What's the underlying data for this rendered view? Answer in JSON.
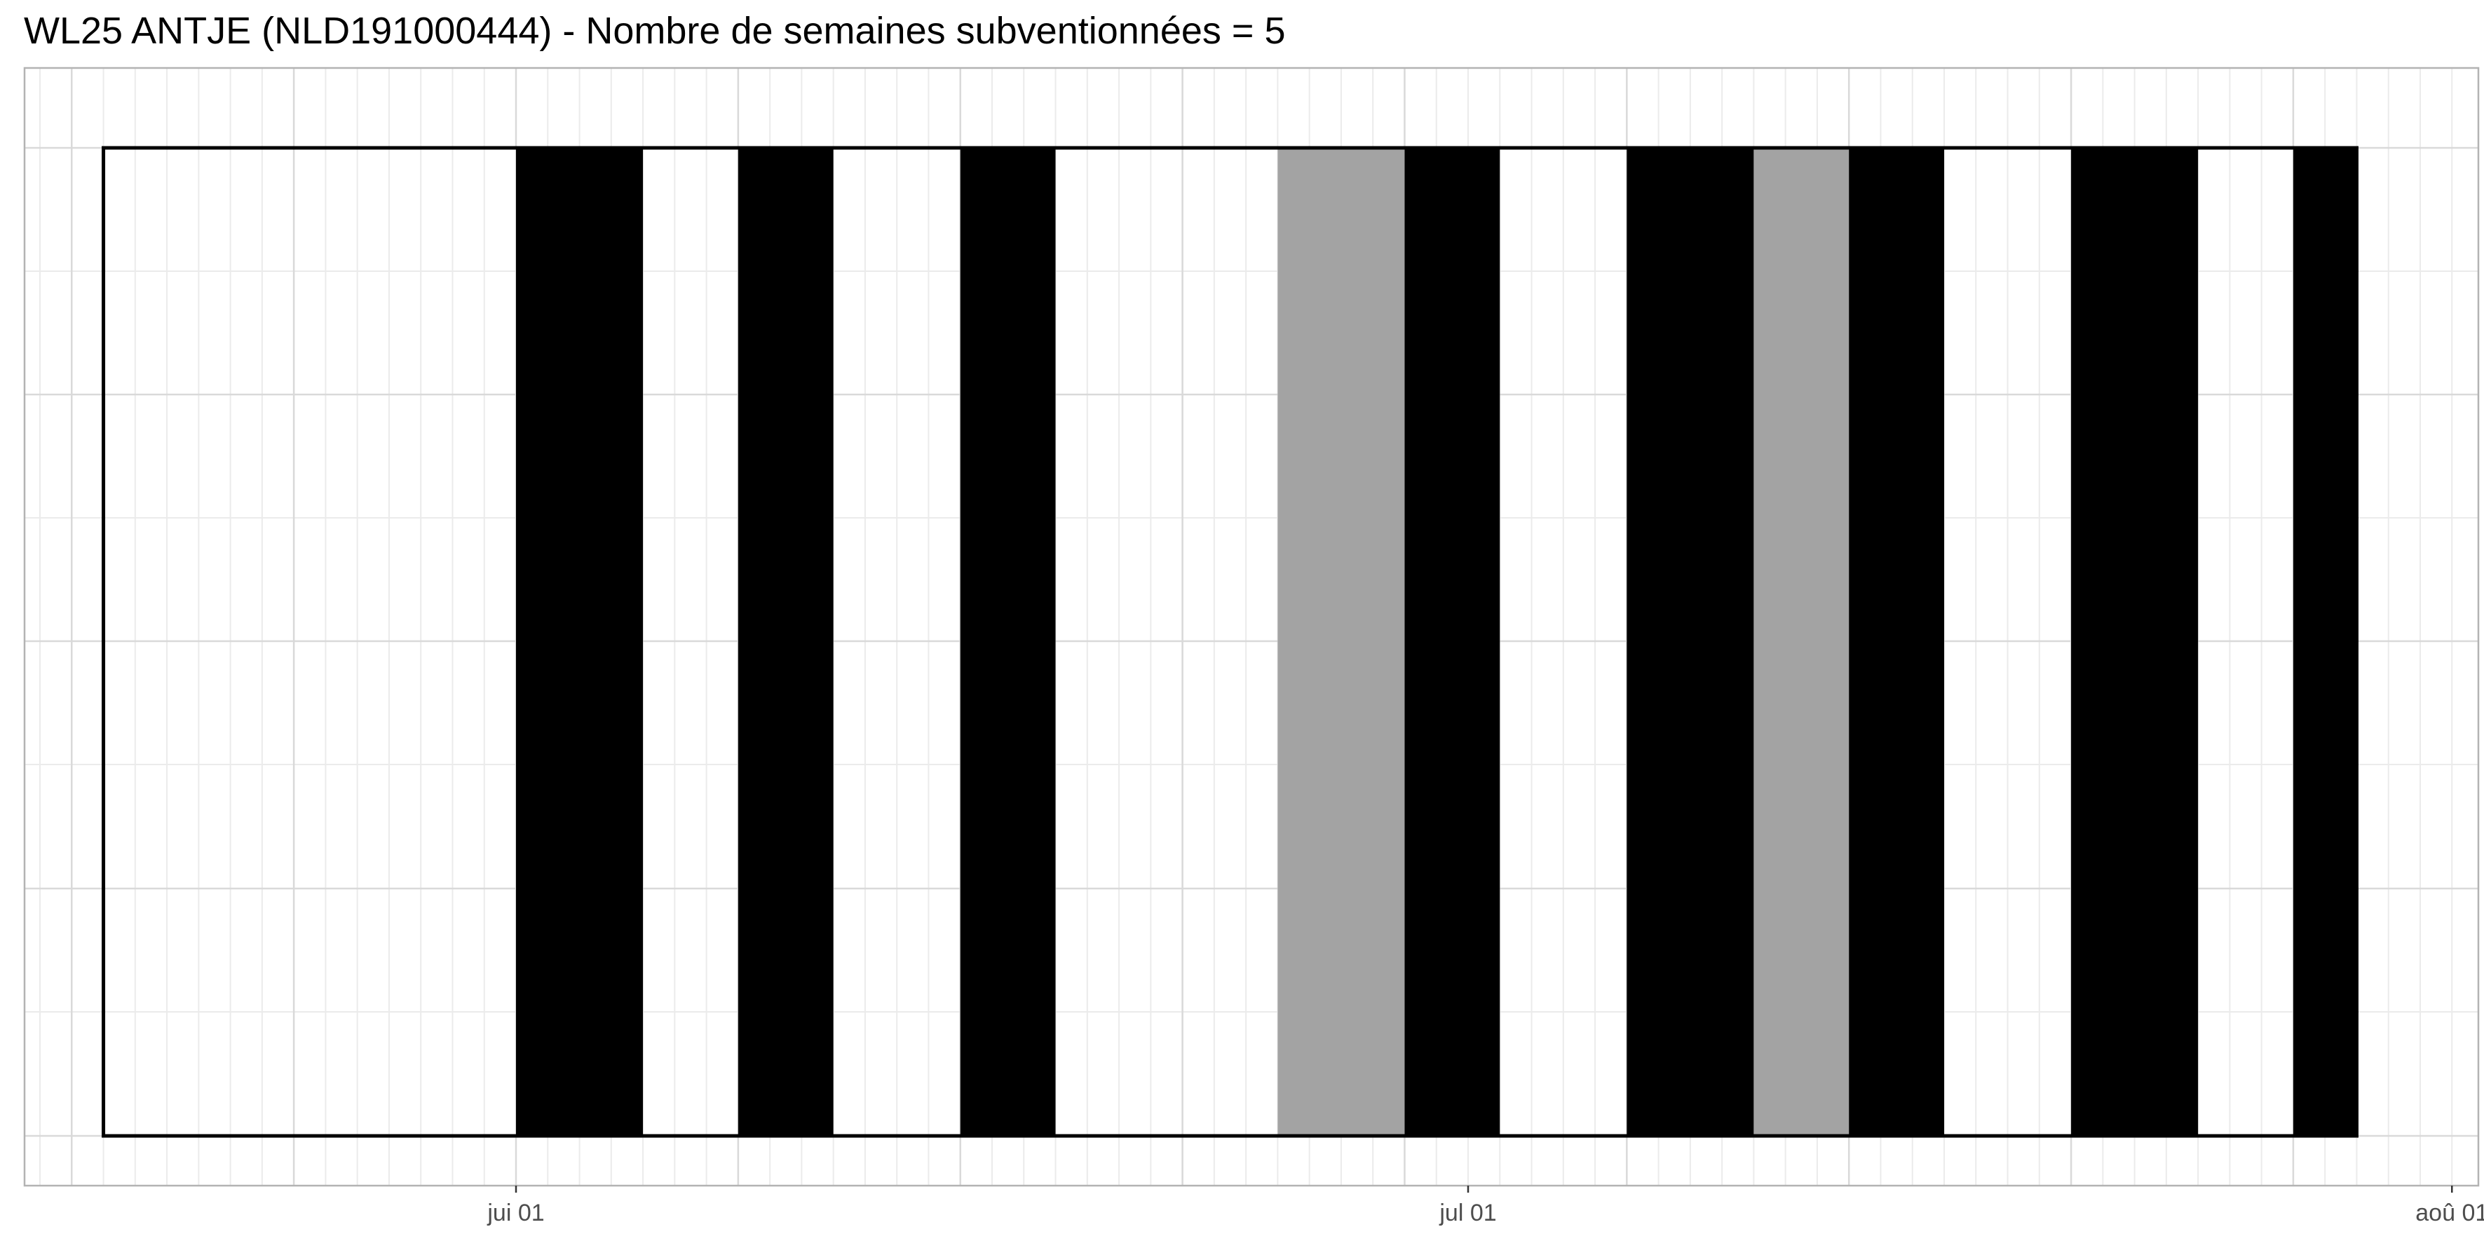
{
  "chart_data": {
    "type": "bar",
    "title": "WL25 ANTJE (NLD191000444) - Nombre de semaines subventionnées = 5",
    "xlabel": "",
    "ylabel": "",
    "x_axis_type": "date",
    "xlim": [
      "2023-05-05",
      "2023-08-01"
    ],
    "x_ticks": [
      {
        "date": "2023-06-01",
        "label": "jui 01"
      },
      {
        "date": "2023-07-01",
        "label": "jul 01"
      },
      {
        "date": "2023-08-01",
        "label": "aoû 01"
      }
    ],
    "grid": "on",
    "legend": "none",
    "colors": {
      "black": "#000000",
      "grey": "#a3a3a3",
      "outline": "#000000",
      "grid_major": "#d9d9d9",
      "grid_minor": "#ebebeb",
      "panel_border": "#b3b3b3"
    },
    "outline_range": [
      "2023-05-19",
      "2023-07-29"
    ],
    "intervals": [
      {
        "start": "2023-06-01",
        "end": "2023-06-05",
        "fill": "black"
      },
      {
        "start": "2023-06-08",
        "end": "2023-06-11",
        "fill": "black"
      },
      {
        "start": "2023-06-15",
        "end": "2023-06-18",
        "fill": "black"
      },
      {
        "start": "2023-06-25",
        "end": "2023-06-29",
        "fill": "grey"
      },
      {
        "start": "2023-06-29",
        "end": "2023-07-02",
        "fill": "black"
      },
      {
        "start": "2023-07-06",
        "end": "2023-07-10",
        "fill": "black"
      },
      {
        "start": "2023-07-10",
        "end": "2023-07-13",
        "fill": "grey"
      },
      {
        "start": "2023-07-13",
        "end": "2023-07-16",
        "fill": "black"
      },
      {
        "start": "2023-07-20",
        "end": "2023-07-24",
        "fill": "black"
      },
      {
        "start": "2023-07-27",
        "end": "2023-07-29",
        "fill": "black"
      }
    ]
  }
}
